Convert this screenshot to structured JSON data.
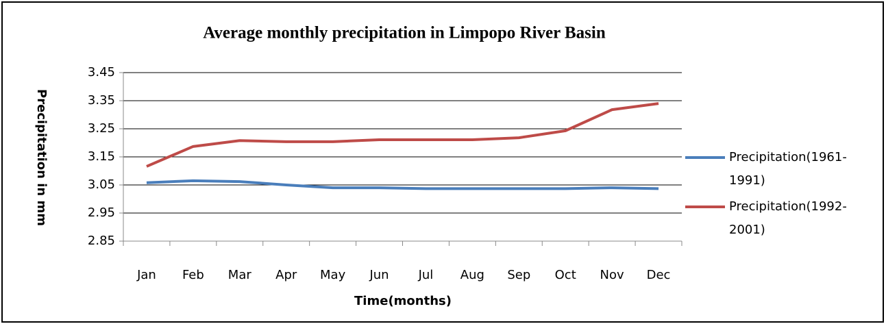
{
  "chart_data": {
    "type": "line",
    "title": "Average monthly precipitation in Limpopo River  Basin",
    "x_label": "Time(months)",
    "y_label": "Precipitation in mm",
    "categories": [
      "Jan",
      "Feb",
      "Mar",
      "Apr",
      "May",
      "Jun",
      "Jul",
      "Aug",
      "Sep",
      "Oct",
      "Nov",
      "Dec"
    ],
    "series": [
      {
        "name": "Precipitation(1961-1991)",
        "color": "#4a7ebb",
        "values": [
          3.058,
          3.065,
          3.062,
          3.05,
          3.04,
          3.04,
          3.037,
          3.037,
          3.037,
          3.037,
          3.04,
          3.037
        ]
      },
      {
        "name": "Precipitation(1992-2001)",
        "color": "#be4b48",
        "values": [
          3.116,
          3.187,
          3.208,
          3.204,
          3.204,
          3.211,
          3.211,
          3.211,
          3.218,
          3.243,
          3.318,
          3.34
        ]
      }
    ],
    "ylim": [
      2.85,
      3.45
    ],
    "yticks": [
      2.85,
      2.95,
      3.05,
      3.15,
      3.25,
      3.35,
      3.45
    ],
    "grid": true,
    "legend": "right"
  }
}
